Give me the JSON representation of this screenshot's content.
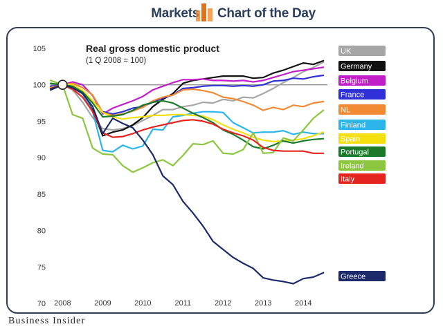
{
  "header": {
    "left_label": "Markets",
    "right_label": "Chart of the Day",
    "accent_color": "#f0862a"
  },
  "footer": {
    "brand": "Business Insider"
  },
  "chart_data": {
    "type": "line",
    "title": "Real gross domestic product",
    "subtitle": "(1 Q 2008 = 100)",
    "xlabel": "",
    "ylabel": "",
    "xlim": [
      2007.7,
      2014.6
    ],
    "ylim": [
      70,
      105
    ],
    "xticks": [
      "2008",
      "2009",
      "2010",
      "2011",
      "2012",
      "2013",
      "2014"
    ],
    "yticks": [
      "105",
      "100",
      "95",
      "90",
      "85",
      "80",
      "75",
      "70"
    ],
    "reference_line": 100,
    "base_point_x": 2008,
    "grid": false,
    "legend": "right",
    "series": [
      {
        "name": "UK",
        "color": "#a6a6a6",
        "x": [
          2007.7,
          2008,
          2008.25,
          2008.5,
          2008.75,
          2009,
          2009.25,
          2009.5,
          2009.75,
          2010,
          2010.25,
          2010.5,
          2010.75,
          2011,
          2011.25,
          2011.5,
          2011.75,
          2012,
          2012.25,
          2012.5,
          2012.75,
          2013,
          2013.25,
          2013.5,
          2013.75,
          2014,
          2014.25,
          2014.5
        ],
        "values": [
          99.8,
          100,
          99.3,
          97.6,
          95.5,
          94.0,
          93.8,
          94.0,
          94.4,
          95.1,
          95.8,
          96.6,
          96.6,
          97.0,
          97.2,
          97.6,
          97.5,
          98.0,
          97.8,
          98.3,
          98.2,
          98.8,
          99.5,
          100.3,
          101.0,
          101.8,
          102.4,
          103.1
        ]
      },
      {
        "name": "Germany",
        "color": "#111111",
        "x": [
          2007.7,
          2008,
          2008.25,
          2008.5,
          2008.75,
          2009,
          2009.25,
          2009.5,
          2009.75,
          2010,
          2010.25,
          2010.5,
          2010.75,
          2011,
          2011.25,
          2011.5,
          2011.75,
          2012,
          2012.25,
          2012.5,
          2012.75,
          2013,
          2013.25,
          2013.5,
          2013.75,
          2014,
          2014.25,
          2014.5
        ],
        "values": [
          99.3,
          100,
          99.6,
          98.8,
          96.5,
          93.0,
          93.5,
          93.8,
          94.5,
          95.5,
          97.0,
          98.0,
          98.8,
          100.2,
          100.6,
          100.8,
          101.0,
          101.2,
          101.2,
          101.2,
          100.9,
          101.0,
          101.6,
          102.0,
          102.5,
          103.0,
          102.8,
          103.3
        ]
      },
      {
        "name": "Belgium",
        "color": "#c21ec7",
        "x": [
          2007.7,
          2008,
          2008.25,
          2008.5,
          2008.75,
          2009,
          2009.25,
          2009.5,
          2009.75,
          2010,
          2010.25,
          2010.5,
          2010.75,
          2011,
          2011.25,
          2011.5,
          2011.75,
          2012,
          2012.25,
          2012.5,
          2012.75,
          2013,
          2013.25,
          2013.5,
          2013.75,
          2014,
          2014.25,
          2014.5
        ],
        "values": [
          99.7,
          100,
          100.4,
          100.0,
          98.5,
          96.0,
          96.8,
          97.3,
          97.8,
          98.4,
          99.3,
          99.8,
          100.3,
          100.7,
          100.7,
          100.8,
          100.6,
          100.6,
          100.5,
          100.6,
          100.4,
          100.6,
          101.0,
          101.4,
          101.8,
          102.0,
          102.2,
          102.4
        ]
      },
      {
        "name": "France",
        "color": "#3030d8",
        "x": [
          2007.7,
          2008,
          2008.25,
          2008.5,
          2008.75,
          2009,
          2009.25,
          2009.5,
          2009.75,
          2010,
          2010.25,
          2010.5,
          2010.75,
          2011,
          2011.25,
          2011.5,
          2011.75,
          2012,
          2012.25,
          2012.5,
          2012.75,
          2013,
          2013.25,
          2013.5,
          2013.75,
          2014,
          2014.25,
          2014.5
        ],
        "values": [
          99.8,
          100,
          99.7,
          99.1,
          97.8,
          96.3,
          96.0,
          96.3,
          96.8,
          97.0,
          97.6,
          98.2,
          98.6,
          99.5,
          99.6,
          99.8,
          99.9,
          99.9,
          99.8,
          99.9,
          99.8,
          100.0,
          100.5,
          100.6,
          100.9,
          100.8,
          101.1,
          101.3
        ]
      },
      {
        "name": "NL",
        "color": "#f28a35",
        "x": [
          2007.7,
          2008,
          2008.25,
          2008.5,
          2008.75,
          2009,
          2009.25,
          2009.5,
          2009.75,
          2010,
          2010.25,
          2010.5,
          2010.75,
          2011,
          2011.25,
          2011.5,
          2011.75,
          2012,
          2012.25,
          2012.5,
          2012.75,
          2013,
          2013.25,
          2013.5,
          2013.75,
          2014,
          2014.25,
          2014.5
        ],
        "values": [
          99.5,
          100,
          100.2,
          99.6,
          98.6,
          96.2,
          95.8,
          96.0,
          96.4,
          96.9,
          97.8,
          98.3,
          98.6,
          99.3,
          99.4,
          99.2,
          98.9,
          98.3,
          98.1,
          97.7,
          97.2,
          96.5,
          96.9,
          96.6,
          97.2,
          97.0,
          97.5,
          97.7
        ]
      },
      {
        "name": "Finland",
        "color": "#2bb5ea",
        "x": [
          2007.7,
          2008,
          2008.25,
          2008.5,
          2008.75,
          2009,
          2009.25,
          2009.5,
          2009.75,
          2010,
          2010.25,
          2010.5,
          2010.75,
          2011,
          2011.25,
          2011.5,
          2011.75,
          2012,
          2012.25,
          2012.5,
          2012.75,
          2013,
          2013.25,
          2013.5,
          2013.75,
          2014,
          2014.25,
          2014.5
        ],
        "values": [
          99.4,
          100,
          99.8,
          98.8,
          96.3,
          91.0,
          90.8,
          91.7,
          91.2,
          91.6,
          93.9,
          93.8,
          95.6,
          95.8,
          96.1,
          96.3,
          96.3,
          96.2,
          94.8,
          94.1,
          93.4,
          93.5,
          93.5,
          93.7,
          93.2,
          93.5,
          93.3,
          93.3
        ]
      },
      {
        "name": "Spain",
        "color": "#f4e00f",
        "x": [
          2007.7,
          2008,
          2008.25,
          2008.5,
          2008.75,
          2009,
          2009.25,
          2009.5,
          2009.75,
          2010,
          2010.25,
          2010.5,
          2010.75,
          2011,
          2011.25,
          2011.5,
          2011.75,
          2012,
          2012.25,
          2012.5,
          2012.75,
          2013,
          2013.25,
          2013.5,
          2013.75,
          2014,
          2014.25,
          2014.5
        ],
        "values": [
          99.6,
          100,
          100.0,
          99.2,
          97.8,
          96.2,
          95.6,
          95.3,
          95.5,
          95.6,
          95.8,
          95.8,
          95.9,
          95.9,
          95.8,
          95.7,
          95.2,
          94.5,
          93.9,
          93.4,
          92.8,
          92.4,
          92.2,
          92.3,
          92.4,
          92.6,
          93.0,
          93.5
        ]
      },
      {
        "name": "Portugal",
        "color": "#1a7a2a",
        "x": [
          2007.7,
          2008,
          2008.25,
          2008.5,
          2008.75,
          2009,
          2009.25,
          2009.5,
          2009.75,
          2010,
          2010.25,
          2010.5,
          2010.75,
          2011,
          2011.25,
          2011.5,
          2011.75,
          2012,
          2012.25,
          2012.5,
          2012.75,
          2013,
          2013.25,
          2013.5,
          2013.75,
          2014,
          2014.25,
          2014.5
        ],
        "values": [
          100.2,
          100,
          99.8,
          99.0,
          97.5,
          95.6,
          95.7,
          95.9,
          96.5,
          97.2,
          97.6,
          97.8,
          97.5,
          96.8,
          96.1,
          95.5,
          94.8,
          93.8,
          93.2,
          92.4,
          91.5,
          91.2,
          91.7,
          92.3,
          92.0,
          92.3,
          92.5,
          92.6
        ]
      },
      {
        "name": "Ireland",
        "color": "#8cc63e",
        "x": [
          2007.7,
          2008,
          2008.25,
          2008.5,
          2008.75,
          2009,
          2009.25,
          2009.5,
          2009.75,
          2010,
          2010.25,
          2010.5,
          2010.75,
          2011,
          2011.25,
          2011.5,
          2011.75,
          2012,
          2012.25,
          2012.5,
          2012.75,
          2013,
          2013.25,
          2013.5,
          2013.75,
          2014,
          2014.25,
          2014.5
        ],
        "values": [
          100.6,
          100,
          95.9,
          95.4,
          91.3,
          90.5,
          90.4,
          88.9,
          88.0,
          88.6,
          89.3,
          89.7,
          88.9,
          90.3,
          91.9,
          91.8,
          92.3,
          90.6,
          90.5,
          91.1,
          93.4,
          90.6,
          90.7,
          92.7,
          92.3,
          93.8,
          95.4,
          96.5
        ]
      },
      {
        "name": "Italy",
        "color": "#e5241f",
        "x": [
          2007.7,
          2008,
          2008.25,
          2008.5,
          2008.75,
          2009,
          2009.25,
          2009.5,
          2009.75,
          2010,
          2010.25,
          2010.5,
          2010.75,
          2011,
          2011.25,
          2011.5,
          2011.75,
          2012,
          2012.25,
          2012.5,
          2012.75,
          2013,
          2013.25,
          2013.5,
          2013.75,
          2014,
          2014.25,
          2014.5
        ],
        "values": [
          99.5,
          100,
          99.4,
          98.3,
          96.3,
          93.4,
          92.8,
          92.9,
          93.3,
          93.8,
          94.2,
          94.5,
          94.8,
          95.1,
          95.2,
          95.0,
          94.6,
          93.9,
          93.4,
          93.0,
          92.4,
          91.4,
          91.0,
          90.9,
          90.9,
          90.9,
          90.6,
          90.6
        ]
      },
      {
        "name": "Greece",
        "color": "#1c2a6b",
        "x": [
          2007.7,
          2008,
          2008.25,
          2008.5,
          2008.75,
          2009,
          2009.25,
          2009.5,
          2009.75,
          2010,
          2010.25,
          2010.5,
          2010.75,
          2011,
          2011.25,
          2011.5,
          2011.75,
          2012,
          2012.25,
          2012.5,
          2012.75,
          2013,
          2013.25,
          2013.5,
          2013.75,
          2014,
          2014.25,
          2014.5
        ],
        "values": [
          99.4,
          100,
          99.6,
          98.8,
          97.0,
          93.3,
          95.4,
          94.7,
          94.1,
          92.4,
          90.4,
          87.5,
          86.3,
          84.0,
          82.4,
          80.6,
          78.5,
          77.4,
          76.3,
          75.5,
          74.8,
          73.5,
          73.2,
          73.0,
          72.7,
          73.4,
          73.6,
          74.2
        ]
      }
    ]
  }
}
